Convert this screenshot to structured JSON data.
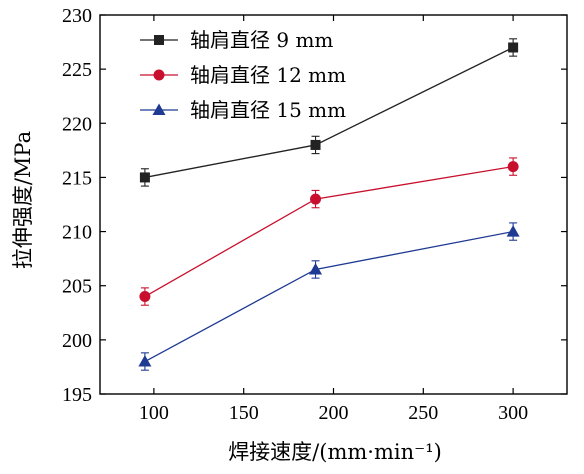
{
  "chart_data": {
    "type": "line",
    "xlabel": "焊接速度/(mm·min⁻¹)",
    "ylabel": "拉伸强度/MPa",
    "xlim": [
      70,
      330
    ],
    "ylim": [
      195,
      230
    ],
    "xticks": [
      100,
      150,
      200,
      250,
      300
    ],
    "yticks": [
      195,
      200,
      205,
      210,
      215,
      220,
      225,
      230
    ],
    "grid": false,
    "legend_position": "top-left",
    "x": [
      95,
      190,
      300
    ],
    "series": [
      {
        "name": "轴肩直径 9 mm",
        "values": [
          215,
          218,
          227
        ],
        "errors": [
          0.8,
          0.8,
          0.8
        ],
        "color": "#222222",
        "marker": "square"
      },
      {
        "name": "轴肩直径 12 mm",
        "values": [
          204,
          213,
          216
        ],
        "errors": [
          0.8,
          0.8,
          0.8
        ],
        "color": "#c8102e",
        "marker": "circle"
      },
      {
        "name": "轴肩直径 15 mm",
        "values": [
          198,
          206.5,
          210
        ],
        "errors": [
          0.8,
          0.8,
          0.8
        ],
        "color": "#1f3a93",
        "marker": "triangle"
      }
    ]
  }
}
